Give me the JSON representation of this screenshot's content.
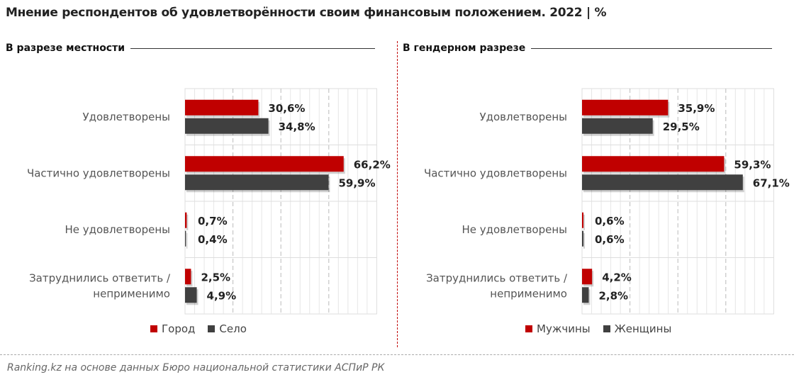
{
  "title": "Мнение респондентов об удовлетворённости своим финансовым положением. 2022 | %",
  "source": "Ranking.kz на основе данных Бюро национальной статистики АСПиР РК",
  "colors": {
    "red": "#c00000",
    "dark": "#404040"
  },
  "chart_data": [
    {
      "type": "bar",
      "orientation": "horizontal",
      "title": "В разрезе местности",
      "categories": [
        "Удовлетворены",
        "Частично удовлетворены",
        "Не удовлетворены",
        "Затруднились ответить / неприменимо"
      ],
      "series": [
        {
          "name": "Город",
          "color": "#c00000",
          "values": [
            30.6,
            66.2,
            0.7,
            2.5
          ],
          "labels": [
            "30,6%",
            "66,2%",
            "0,7%",
            "2,5%"
          ]
        },
        {
          "name": "Село",
          "color": "#404040",
          "values": [
            34.8,
            59.9,
            0.4,
            4.9
          ],
          "labels": [
            "34,8%",
            "59,9%",
            "0,4%",
            "4,9%"
          ]
        }
      ],
      "xlim": [
        0,
        80
      ],
      "grid": true,
      "legend": "bottom"
    },
    {
      "type": "bar",
      "orientation": "horizontal",
      "title": "В гендерном разрезе",
      "categories": [
        "Удовлетворены",
        "Частично удовлетворены",
        "Не удовлетворены",
        "Затруднились ответить / неприменимо"
      ],
      "series": [
        {
          "name": "Мужчины",
          "color": "#c00000",
          "values": [
            35.9,
            59.3,
            0.6,
            4.2
          ],
          "labels": [
            "35,9%",
            "59,3%",
            "0,6%",
            "4,2%"
          ]
        },
        {
          "name": "Женщины",
          "color": "#404040",
          "values": [
            29.5,
            67.1,
            0.6,
            2.8
          ],
          "labels": [
            "29,5%",
            "67,1%",
            "0,6%",
            "2,8%"
          ]
        }
      ],
      "xlim": [
        0,
        80
      ],
      "grid": true,
      "legend": "bottom"
    }
  ]
}
